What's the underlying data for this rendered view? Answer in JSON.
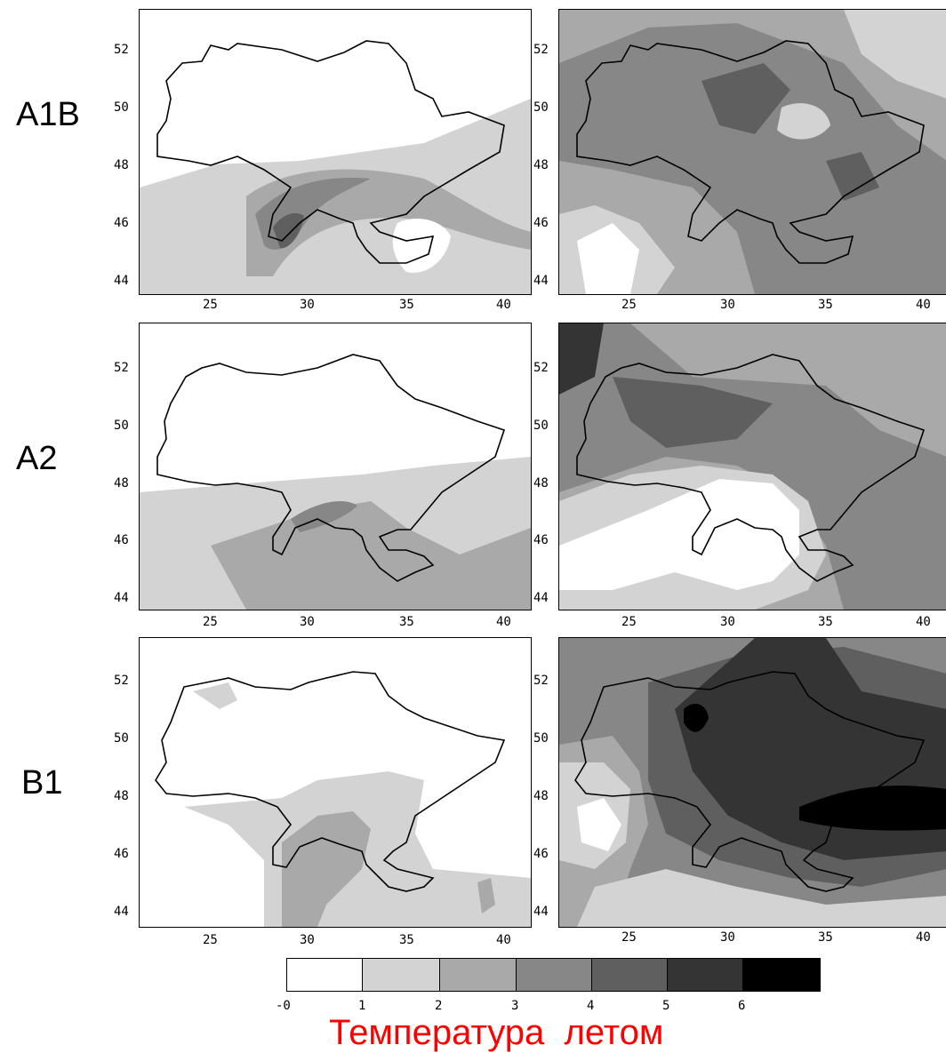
{
  "row_labels": [
    "A1B",
    "A2",
    "B1"
  ],
  "lat_ticks": [
    "52",
    "50",
    "48",
    "46",
    "44"
  ],
  "lon_ticks_left": [
    "25",
    "30",
    "35",
    "40"
  ],
  "lon_ticks_right": [
    "25",
    "30",
    "35",
    "40"
  ],
  "legend": {
    "colors": [
      "#ffffff",
      "#d3d3d3",
      "#a9a9a9",
      "#878787",
      "#5f5f5f",
      "#343434",
      "#000000"
    ],
    "ticks": [
      "-0",
      "1",
      "2",
      "3",
      "4",
      "5",
      "6"
    ]
  },
  "caption": "Температура  летом"
}
